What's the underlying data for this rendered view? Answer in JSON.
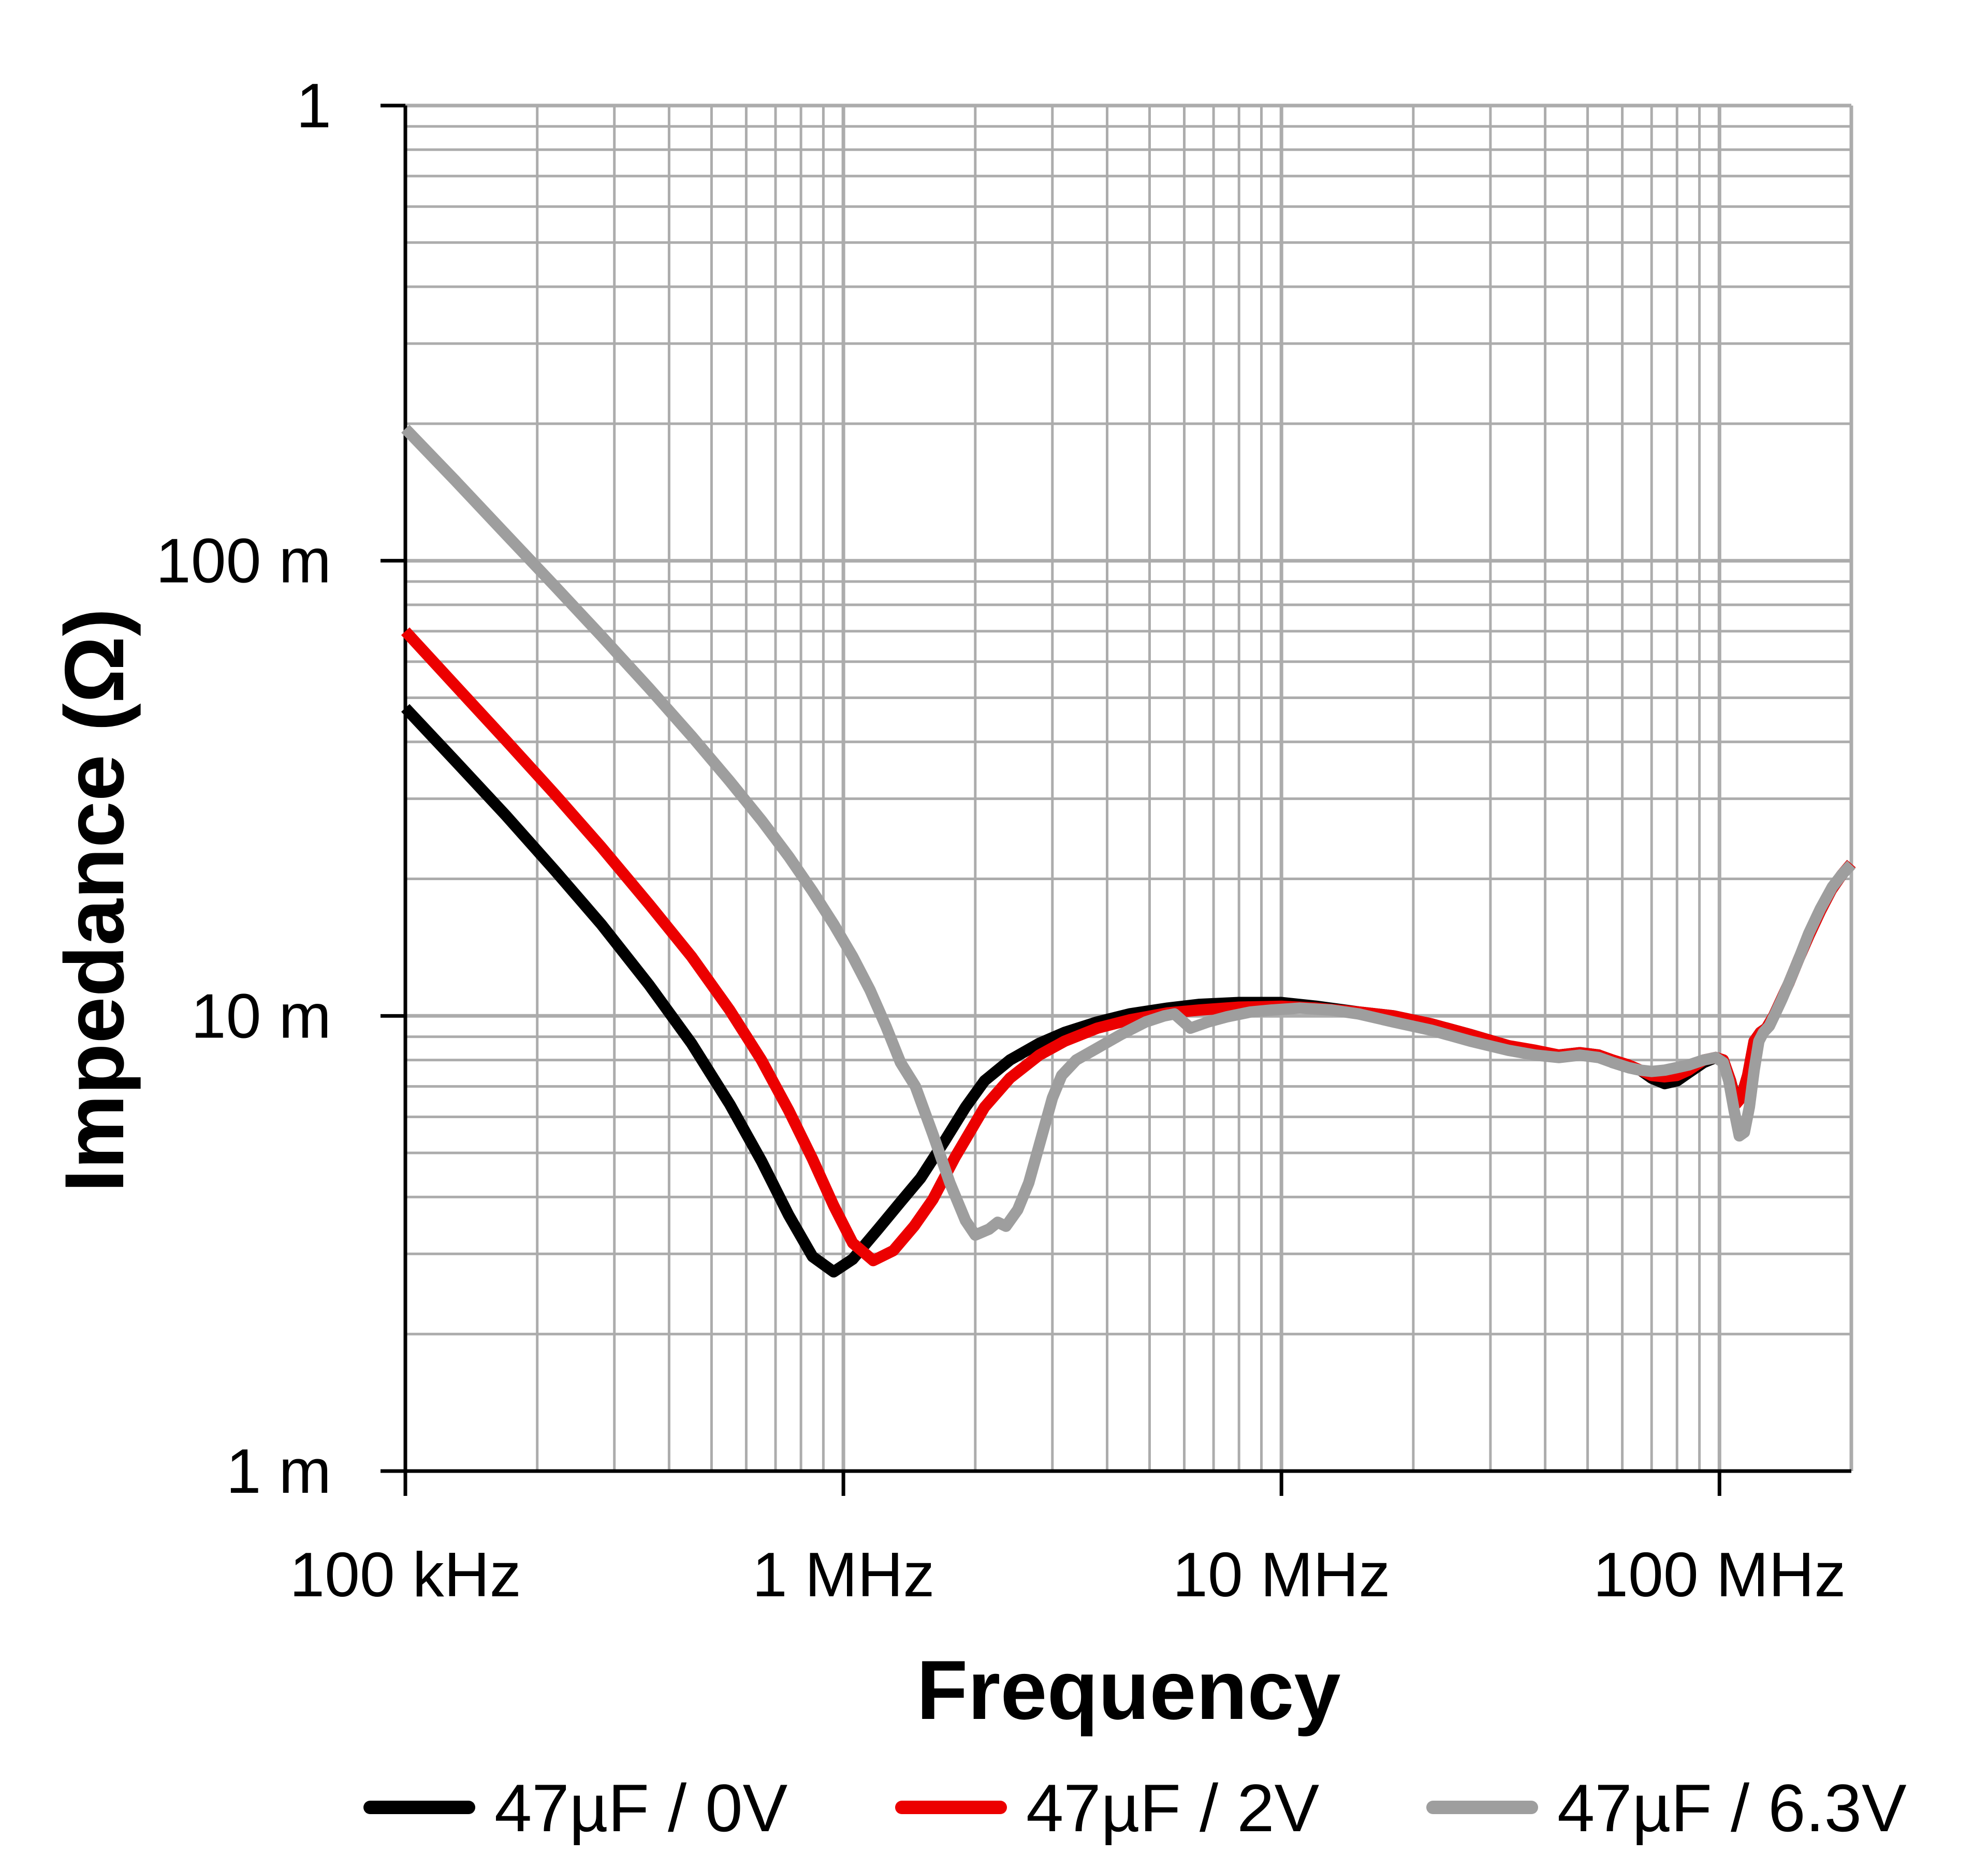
{
  "chart_data": {
    "type": "line",
    "title": "",
    "xlabel": "Frequency",
    "ylabel": "Impedance (Ω)",
    "x_unit": "MHz",
    "xlim_mhz": [
      0.1,
      200
    ],
    "ylim_ohm": [
      0.001,
      1
    ],
    "x_scale": "log",
    "y_scale": "log",
    "grid": "log minor + major, gray",
    "x_ticks": [
      {
        "value_mhz": 0.1,
        "label": "100 kHz"
      },
      {
        "value_mhz": 1,
        "label": "1 MHz"
      },
      {
        "value_mhz": 10,
        "label": "10 MHz"
      },
      {
        "value_mhz": 100,
        "label": "100 MHz"
      }
    ],
    "y_ticks": [
      {
        "value_ohm": 1,
        "label": "1"
      },
      {
        "value_ohm": 0.1,
        "label": "100 m"
      },
      {
        "value_ohm": 0.01,
        "label": "10 m"
      },
      {
        "value_ohm": 0.001,
        "label": "1 m"
      }
    ],
    "legend_position": "bottom",
    "colors": {
      "grid": "#acacac",
      "axis": "#000000"
    },
    "series": [
      {
        "name": "47µF / 0V",
        "color": "#000000",
        "points_mhz_ohm": [
          [
            0.1,
            0.0475
          ],
          [
            0.13,
            0.0363
          ],
          [
            0.17,
            0.0275
          ],
          [
            0.22,
            0.0208
          ],
          [
            0.28,
            0.0159
          ],
          [
            0.36,
            0.0117
          ],
          [
            0.45,
            0.0087
          ],
          [
            0.55,
            0.0064
          ],
          [
            0.65,
            0.0048
          ],
          [
            0.75,
            0.00365
          ],
          [
            0.85,
            0.00296
          ],
          [
            0.95,
            0.00274
          ],
          [
            1.05,
            0.00292
          ],
          [
            1.2,
            0.0034
          ],
          [
            1.35,
            0.0039
          ],
          [
            1.5,
            0.0044
          ],
          [
            1.7,
            0.0053
          ],
          [
            1.9,
            0.0063
          ],
          [
            2.1,
            0.0072
          ],
          [
            2.4,
            0.008
          ],
          [
            2.8,
            0.0087
          ],
          [
            3.2,
            0.0092
          ],
          [
            3.8,
            0.0097
          ],
          [
            4.5,
            0.0101
          ],
          [
            5.5,
            0.0104
          ],
          [
            6.5,
            0.0106
          ],
          [
            8.0,
            0.0107
          ],
          [
            10,
            0.0107
          ],
          [
            12,
            0.0105
          ],
          [
            15,
            0.0102
          ],
          [
            18,
            0.01
          ],
          [
            22,
            0.0096
          ],
          [
            27,
            0.0091
          ],
          [
            33,
            0.0086
          ],
          [
            38,
            0.0083
          ],
          [
            43,
            0.0082
          ],
          [
            48,
            0.0083
          ],
          [
            53,
            0.0082
          ],
          [
            57,
            0.0079
          ],
          [
            62,
            0.0077
          ],
          [
            66,
            0.0076
          ],
          [
            70,
            0.0073
          ],
          [
            75,
            0.0071
          ],
          [
            80,
            0.0072
          ],
          [
            85,
            0.0075
          ],
          [
            92,
            0.0079
          ],
          [
            98,
            0.0081
          ],
          [
            102,
            0.008
          ],
          [
            106,
            0.0072
          ],
          [
            109,
            0.0065
          ],
          [
            112,
            0.0066
          ],
          [
            116,
            0.0074
          ],
          [
            120,
            0.0088
          ],
          [
            124,
            0.0092
          ],
          [
            128,
            0.0094
          ],
          [
            133,
            0.01
          ],
          [
            138,
            0.0108
          ],
          [
            144,
            0.0118
          ],
          [
            152,
            0.0134
          ],
          [
            160,
            0.015
          ],
          [
            170,
            0.017
          ],
          [
            180,
            0.0189
          ],
          [
            190,
            0.0204
          ],
          [
            200,
            0.0216
          ]
        ]
      },
      {
        "name": "47µF / 2V",
        "color": "#ec0000",
        "points_mhz_ohm": [
          [
            0.1,
            0.07
          ],
          [
            0.13,
            0.0532
          ],
          [
            0.17,
            0.0402
          ],
          [
            0.22,
            0.0306
          ],
          [
            0.28,
            0.0235
          ],
          [
            0.36,
            0.0176
          ],
          [
            0.45,
            0.0135
          ],
          [
            0.55,
            0.0103
          ],
          [
            0.65,
            0.008
          ],
          [
            0.75,
            0.0062
          ],
          [
            0.85,
            0.00485
          ],
          [
            0.95,
            0.00383
          ],
          [
            1.05,
            0.00317
          ],
          [
            1.17,
            0.0029
          ],
          [
            1.3,
            0.00305
          ],
          [
            1.45,
            0.00345
          ],
          [
            1.6,
            0.00395
          ],
          [
            1.8,
            0.0049
          ],
          [
            2.1,
            0.0063
          ],
          [
            2.4,
            0.0073
          ],
          [
            2.8,
            0.0082
          ],
          [
            3.2,
            0.0088
          ],
          [
            3.8,
            0.0094
          ],
          [
            4.5,
            0.0098
          ],
          [
            5.5,
            0.01015
          ],
          [
            6.5,
            0.0103
          ],
          [
            8.0,
            0.01045
          ],
          [
            10,
            0.0105
          ],
          [
            12,
            0.0104
          ],
          [
            15,
            0.0102
          ],
          [
            18,
            0.01
          ],
          [
            22,
            0.0096
          ],
          [
            27,
            0.0091
          ],
          [
            33,
            0.0086
          ],
          [
            38,
            0.0084
          ],
          [
            43,
            0.0082
          ],
          [
            48,
            0.0083
          ],
          [
            53,
            0.0082
          ],
          [
            57,
            0.008
          ],
          [
            62,
            0.0078
          ],
          [
            66,
            0.0076
          ],
          [
            70,
            0.0074
          ],
          [
            75,
            0.00735
          ],
          [
            80,
            0.0074
          ],
          [
            85,
            0.0076
          ],
          [
            92,
            0.008
          ],
          [
            98,
            0.0081
          ],
          [
            102,
            0.008
          ],
          [
            106,
            0.0072
          ],
          [
            109,
            0.0064
          ],
          [
            112,
            0.0066
          ],
          [
            116,
            0.0074
          ],
          [
            120,
            0.0088
          ],
          [
            124,
            0.0092
          ],
          [
            128,
            0.0094
          ],
          [
            133,
            0.01
          ],
          [
            138,
            0.0108
          ],
          [
            144,
            0.0118
          ],
          [
            152,
            0.0134
          ],
          [
            160,
            0.015
          ],
          [
            170,
            0.017
          ],
          [
            180,
            0.0189
          ],
          [
            190,
            0.0204
          ],
          [
            200,
            0.0216
          ]
        ]
      },
      {
        "name": "47µF / 6.3V",
        "color": "#9e9e9e",
        "points_mhz_ohm": [
          [
            0.1,
            0.195
          ],
          [
            0.13,
            0.15
          ],
          [
            0.17,
            0.114
          ],
          [
            0.22,
            0.0877
          ],
          [
            0.28,
            0.0684
          ],
          [
            0.36,
            0.0525
          ],
          [
            0.45,
            0.0412
          ],
          [
            0.55,
            0.0328
          ],
          [
            0.65,
            0.0269
          ],
          [
            0.75,
            0.0224
          ],
          [
            0.85,
            0.0188
          ],
          [
            0.95,
            0.0159
          ],
          [
            1.05,
            0.0135
          ],
          [
            1.15,
            0.0114
          ],
          [
            1.25,
            0.0095
          ],
          [
            1.35,
            0.0079
          ],
          [
            1.46,
            0.007
          ],
          [
            1.6,
            0.0055
          ],
          [
            1.75,
            0.0043
          ],
          [
            1.9,
            0.00355
          ],
          [
            2.0,
            0.0033
          ],
          [
            2.15,
            0.0034
          ],
          [
            2.25,
            0.00352
          ],
          [
            2.35,
            0.00345
          ],
          [
            2.5,
            0.00375
          ],
          [
            2.65,
            0.0043
          ],
          [
            2.8,
            0.0052
          ],
          [
            3.0,
            0.0066
          ],
          [
            3.15,
            0.0074
          ],
          [
            3.4,
            0.008
          ],
          [
            3.8,
            0.0085
          ],
          [
            4.3,
            0.0091
          ],
          [
            4.9,
            0.0097
          ],
          [
            5.4,
            0.01
          ],
          [
            5.7,
            0.0101
          ],
          [
            6.2,
            0.0094
          ],
          [
            6.8,
            0.0097
          ],
          [
            7.5,
            0.00995
          ],
          [
            8.5,
            0.0102
          ],
          [
            9.5,
            0.0103
          ],
          [
            11,
            0.0104
          ],
          [
            13,
            0.0103
          ],
          [
            15,
            0.0101
          ],
          [
            18,
            0.0097
          ],
          [
            22,
            0.0093
          ],
          [
            27,
            0.0088
          ],
          [
            33,
            0.0084
          ],
          [
            38,
            0.0082
          ],
          [
            43,
            0.0081
          ],
          [
            48,
            0.0082
          ],
          [
            53,
            0.0081
          ],
          [
            57,
            0.0079
          ],
          [
            62,
            0.0077
          ],
          [
            66,
            0.0076
          ],
          [
            70,
            0.00755
          ],
          [
            75,
            0.0076
          ],
          [
            80,
            0.0077
          ],
          [
            85,
            0.0078
          ],
          [
            92,
            0.008
          ],
          [
            98,
            0.0081
          ],
          [
            102,
            0.0079
          ],
          [
            105,
            0.0072
          ],
          [
            108,
            0.0062
          ],
          [
            111,
            0.00545
          ],
          [
            114,
            0.00555
          ],
          [
            117,
            0.0063
          ],
          [
            120,
            0.0076
          ],
          [
            123,
            0.0088
          ],
          [
            126,
            0.0092
          ],
          [
            130,
            0.0095
          ],
          [
            134,
            0.0101
          ],
          [
            139,
            0.0109
          ],
          [
            145,
            0.012
          ],
          [
            152,
            0.0134
          ],
          [
            160,
            0.0152
          ],
          [
            170,
            0.0172
          ],
          [
            181,
            0.0192
          ],
          [
            190,
            0.0204
          ],
          [
            200,
            0.0215
          ]
        ]
      }
    ]
  }
}
